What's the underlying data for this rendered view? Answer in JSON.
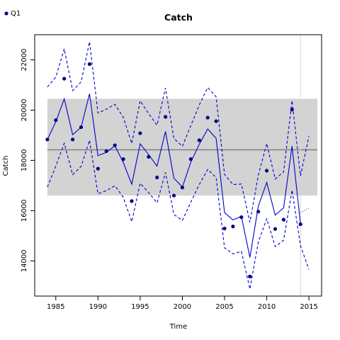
{
  "chart_data": {
    "type": "line",
    "title": "Catch",
    "xlabel": "Time",
    "ylabel": "Catch",
    "xlim": [
      1982.5,
      2016.5
    ],
    "ylim": [
      12600,
      23000
    ],
    "xticks": [
      1985,
      1990,
      1995,
      2000,
      2005,
      2010,
      2015
    ],
    "yticks": [
      14000,
      16000,
      18000,
      20000,
      22000
    ],
    "grid": false,
    "legend": {
      "position": "top-left",
      "entries": [
        "Q1"
      ]
    },
    "colors": {
      "series": "#0000cc",
      "points": "#00008b",
      "band": "#d3d3d3",
      "mean": "#808080",
      "vline": "#d3d3d3",
      "dotted": "#000000"
    },
    "band": {
      "x": [
        1984,
        2016
      ],
      "ymin": 16600,
      "ymax": 20450
    },
    "mean_line": {
      "x": [
        1984,
        2016
      ],
      "y": 18420
    },
    "vline_x": 2014,
    "series": [
      {
        "name": "Q1",
        "style": "points",
        "x": [
          1984,
          1985,
          1986,
          1987,
          1988,
          1989,
          1990,
          1991,
          1992,
          1993,
          1994,
          1995,
          1996,
          1997,
          1998,
          1999,
          2000,
          2001,
          2002,
          2003,
          2004,
          2005,
          2006,
          2007,
          2008,
          2009,
          2010,
          2011,
          2012,
          2013,
          2014
        ],
        "values": [
          18830,
          19600,
          21250,
          18830,
          19320,
          21830,
          17670,
          18370,
          18600,
          18050,
          16380,
          19080,
          18140,
          17320,
          19730,
          16600,
          16920,
          18050,
          18800,
          19700,
          19560,
          15290,
          15370,
          15740,
          13380,
          15960,
          17590,
          15270,
          15640,
          20020,
          15460
        ]
      },
      {
        "style": "solid-line",
        "x": [
          1984,
          1985,
          1986,
          1987,
          1988,
          1989,
          1990,
          1991,
          1992,
          1993,
          1994,
          1995,
          1996,
          1997,
          1998,
          1999,
          2000,
          2001,
          2002,
          2003,
          2004,
          2005,
          2006,
          2007,
          2008,
          2009,
          2010,
          2011,
          2012,
          2013,
          2014
        ],
        "values": [
          18830,
          19540,
          20450,
          19020,
          19320,
          20650,
          18190,
          18320,
          18580,
          17910,
          17050,
          18660,
          18230,
          17770,
          19150,
          17290,
          16940,
          17930,
          18640,
          19250,
          18880,
          15920,
          15630,
          15770,
          14140,
          16180,
          17120,
          15820,
          16110,
          18570,
          15470
        ]
      },
      {
        "style": "dashed-line",
        "x": [
          1984,
          1985,
          1986,
          1987,
          1988,
          1989,
          1990,
          1991,
          1992,
          1993,
          1994,
          1995,
          1996,
          1997,
          1998,
          1999,
          2000,
          2001,
          2002,
          2003,
          2004,
          2005,
          2006,
          2007,
          2008,
          2009,
          2010,
          2011,
          2012,
          2013,
          2014,
          2015
        ],
        "values": [
          20920,
          21310,
          22440,
          20780,
          21120,
          22720,
          19880,
          20040,
          20230,
          19710,
          18670,
          20370,
          19860,
          19400,
          20880,
          18870,
          18560,
          19380,
          20200,
          20900,
          20530,
          17440,
          17040,
          17060,
          15540,
          17420,
          18670,
          17260,
          17540,
          20380,
          17380,
          18960
        ]
      },
      {
        "style": "dashed-line",
        "x": [
          1984,
          1985,
          1986,
          1987,
          1988,
          1989,
          1990,
          1991,
          1992,
          1993,
          1994,
          1995,
          1996,
          1997,
          1998,
          1999,
          2000,
          2001,
          2002,
          2003,
          2004,
          2005,
          2006,
          2007,
          2008,
          2009,
          2010,
          2011,
          2012,
          2013,
          2014,
          2015
        ],
        "values": [
          16940,
          17770,
          18680,
          17430,
          17760,
          18800,
          16670,
          16800,
          16990,
          16530,
          15560,
          17090,
          16720,
          16310,
          17520,
          15850,
          15610,
          16340,
          17040,
          17640,
          17320,
          14520,
          14280,
          14380,
          12880,
          14760,
          15680,
          14570,
          14820,
          16820,
          14610,
          13660
        ]
      },
      {
        "style": "dotted-line",
        "x": [
          2014,
          2015
        ],
        "values": [
          15920,
          16100
        ]
      }
    ]
  }
}
